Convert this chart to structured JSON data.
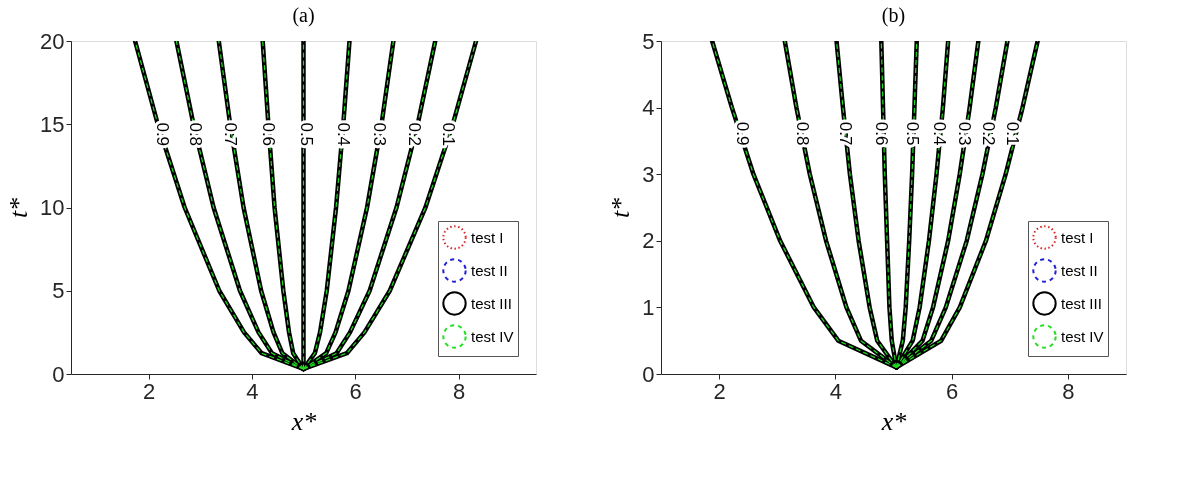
{
  "chart_data": [
    {
      "type": "line",
      "title": "(a)",
      "xlabel": "x*",
      "ylabel": "t*",
      "xlim": [
        0.5,
        9.5
      ],
      "ylim": [
        0,
        20
      ],
      "xticks": [
        2,
        4,
        6,
        8
      ],
      "yticks": [
        0,
        5,
        10,
        15,
        20
      ],
      "grid": false,
      "legend": "bottom right",
      "marker": "none",
      "series": [
        {
          "name": "test I",
          "color": "#d62728",
          "line_style": "dotted"
        },
        {
          "name": "test II",
          "color": "#1f1fd6",
          "line_style": "dashed"
        },
        {
          "name": "test III",
          "color": "#000000",
          "line_style": "solid",
          "x": [
            5,
            4.19,
            3.85,
            3.37,
            2.7,
            2.18,
            1.74,
            null,
            5,
            4.39,
            4.13,
            3.77,
            3.26,
            2.87,
            2.54,
            null,
            5,
            4.59,
            4.42,
            4.18,
            3.84,
            3.58,
            3.36,
            null,
            5,
            4.8,
            4.72,
            4.61,
            4.44,
            4.32,
            4.21,
            null,
            5,
            5,
            5,
            5,
            5,
            5,
            5,
            null,
            5,
            5.22,
            5.32,
            5.45,
            5.63,
            5.77,
            5.89,
            null,
            5,
            5.44,
            5.62,
            5.87,
            6.23,
            6.51,
            6.74,
            null,
            5,
            5.64,
            5.9,
            6.28,
            6.8,
            7.21,
            7.55,
            null,
            5,
            5.84,
            6.18,
            6.67,
            7.36,
            7.89,
            8.34
          ],
          "values": [
            0.3,
            1.25,
            2.5,
            5,
            10,
            15,
            20,
            null,
            0.3,
            1.25,
            2.5,
            5,
            10,
            15,
            20,
            null,
            0.3,
            1.25,
            2.5,
            5,
            10,
            15,
            20,
            null,
            0.3,
            1.25,
            2.5,
            5,
            10,
            15,
            20,
            null,
            0.3,
            1.25,
            2.5,
            5,
            10,
            15,
            20,
            null,
            0.3,
            1.25,
            2.5,
            5,
            10,
            15,
            20,
            null,
            0.3,
            1.25,
            2.5,
            5,
            10,
            15,
            20,
            null,
            0.3,
            1.25,
            2.5,
            5,
            10,
            15,
            20,
            null,
            0.3,
            1.25,
            2.5,
            5,
            10,
            15,
            20
          ]
        },
        {
          "name": "test IV",
          "color": "#22dd22",
          "line_style": "dashed",
          "x": [
            5,
            4.19,
            3.85,
            3.37,
            2.7,
            2.18,
            1.74,
            null,
            5,
            4.39,
            4.13,
            3.77,
            3.26,
            2.87,
            2.54,
            null,
            5,
            4.59,
            4.42,
            4.18,
            3.84,
            3.58,
            3.36,
            null,
            5,
            4.8,
            4.72,
            4.61,
            4.44,
            4.32,
            4.21,
            null,
            5,
            5,
            5,
            5,
            5,
            5,
            5,
            null,
            5,
            5.22,
            5.32,
            5.45,
            5.63,
            5.77,
            5.89,
            null,
            5,
            5.44,
            5.62,
            5.87,
            6.23,
            6.51,
            6.74,
            null,
            5,
            5.64,
            5.9,
            6.28,
            6.8,
            7.21,
            7.55,
            null,
            5,
            5.84,
            6.18,
            6.67,
            7.36,
            7.89,
            8.34
          ],
          "values": [
            0.3,
            1.25,
            2.5,
            5,
            10,
            15,
            20,
            null,
            0.3,
            1.25,
            2.5,
            5,
            10,
            15,
            20,
            null,
            0.3,
            1.25,
            2.5,
            5,
            10,
            15,
            20,
            null,
            0.3,
            1.25,
            2.5,
            5,
            10,
            15,
            20,
            null,
            0.3,
            1.25,
            2.5,
            5,
            10,
            15,
            20,
            null,
            0.3,
            1.25,
            2.5,
            5,
            10,
            15,
            20,
            null,
            0.3,
            1.25,
            2.5,
            5,
            10,
            15,
            20,
            null,
            0.3,
            1.25,
            2.5,
            5,
            10,
            15,
            20,
            null,
            0.3,
            1.25,
            2.5,
            5,
            10,
            15,
            20
          ]
        }
      ],
      "annotations": [
        {
          "text": "0.9",
          "x": 2.26,
          "y": 14.4
        },
        {
          "text": "0.8",
          "x": 2.9,
          "y": 14.4
        },
        {
          "text": "0.7",
          "x": 3.58,
          "y": 14.4
        },
        {
          "text": "0.6",
          "x": 4.31,
          "y": 14.4
        },
        {
          "text": "0.5",
          "x": 5.05,
          "y": 14.4
        },
        {
          "text": "0.4",
          "x": 5.76,
          "y": 14.4
        },
        {
          "text": "0.3",
          "x": 6.46,
          "y": 14.4
        },
        {
          "text": "0.2",
          "x": 7.13,
          "y": 14.4
        },
        {
          "text": "0.1",
          "x": 7.79,
          "y": 14.4
        }
      ]
    },
    {
      "type": "line",
      "title": "(b)",
      "xlabel": "x*",
      "ylabel": "t*",
      "xlim": [
        1,
        9
      ],
      "ylim": [
        0,
        5
      ],
      "xticks": [
        2,
        4,
        6,
        8
      ],
      "yticks": [
        0,
        1,
        2,
        3,
        4,
        5
      ],
      "grid": false,
      "legend": "bottom right",
      "marker": "none",
      "series": [
        {
          "name": "test I",
          "color": "#d62728",
          "line_style": "dotted"
        },
        {
          "name": "test II",
          "color": "#1f1fd6",
          "line_style": "dashed"
        },
        {
          "name": "test III",
          "color": "#000000",
          "line_style": "solid",
          "x": [
            5.05,
            4.05,
            3.63,
            3.05,
            2.59,
            2.22,
            1.88,
            null,
            5.05,
            4.44,
            4.19,
            3.84,
            3.56,
            3.33,
            3.13,
            null,
            5.05,
            4.72,
            4.59,
            4.4,
            4.25,
            4.13,
            4.02,
            null,
            5.05,
            4.97,
            4.93,
            4.89,
            4.85,
            4.82,
            4.79,
            null,
            5.05,
            5.16,
            5.21,
            5.27,
            5.32,
            5.36,
            5.4,
            null,
            5.05,
            5.33,
            5.45,
            5.61,
            5.74,
            5.85,
            5.94,
            null,
            5.05,
            5.5,
            5.68,
            5.94,
            6.14,
            6.31,
            6.46,
            null,
            5.05,
            5.65,
            5.9,
            6.26,
            6.53,
            6.76,
            6.96,
            null,
            5.05,
            5.82,
            6.14,
            6.59,
            6.93,
            7.22,
            7.48
          ],
          "values": [
            0.1,
            0.5,
            1,
            2,
            3,
            4,
            5,
            null,
            0.1,
            0.5,
            1,
            2,
            3,
            4,
            5,
            null,
            0.1,
            0.5,
            1,
            2,
            3,
            4,
            5,
            null,
            0.1,
            0.5,
            1,
            2,
            3,
            4,
            5,
            null,
            0.1,
            0.5,
            1,
            2,
            3,
            4,
            5,
            null,
            0.1,
            0.5,
            1,
            2,
            3,
            4,
            5,
            null,
            0.1,
            0.5,
            1,
            2,
            3,
            4,
            5,
            null,
            0.1,
            0.5,
            1,
            2,
            3,
            4,
            5,
            null,
            0.1,
            0.5,
            1,
            2,
            3,
            4,
            5
          ]
        },
        {
          "name": "test IV",
          "color": "#22dd22",
          "line_style": "dashed",
          "x": [
            5.05,
            4.05,
            3.63,
            3.05,
            2.59,
            2.22,
            1.88,
            null,
            5.05,
            4.44,
            4.19,
            3.84,
            3.56,
            3.33,
            3.13,
            null,
            5.05,
            4.72,
            4.59,
            4.4,
            4.25,
            4.13,
            4.02,
            null,
            5.05,
            4.97,
            4.93,
            4.89,
            4.85,
            4.82,
            4.79,
            null,
            5.05,
            5.16,
            5.21,
            5.27,
            5.32,
            5.36,
            5.4,
            null,
            5.05,
            5.33,
            5.45,
            5.61,
            5.74,
            5.85,
            5.94,
            null,
            5.05,
            5.5,
            5.68,
            5.94,
            6.14,
            6.31,
            6.46,
            null,
            5.05,
            5.65,
            5.9,
            6.26,
            6.53,
            6.76,
            6.96,
            null,
            5.05,
            5.82,
            6.14,
            6.59,
            6.93,
            7.22,
            7.48
          ],
          "values": [
            0.1,
            0.5,
            1,
            2,
            3,
            4,
            5,
            null,
            0.1,
            0.5,
            1,
            2,
            3,
            4,
            5,
            null,
            0.1,
            0.5,
            1,
            2,
            3,
            4,
            5,
            null,
            0.1,
            0.5,
            1,
            2,
            3,
            4,
            5,
            null,
            0.1,
            0.5,
            1,
            2,
            3,
            4,
            5,
            null,
            0.1,
            0.5,
            1,
            2,
            3,
            4,
            5,
            null,
            0.1,
            0.5,
            1,
            2,
            3,
            4,
            5,
            null,
            0.1,
            0.5,
            1,
            2,
            3,
            4,
            5,
            null,
            0.1,
            0.5,
            1,
            2,
            3,
            4,
            5
          ]
        }
      ],
      "annotations": [
        {
          "text": "0.9",
          "x": 2.4,
          "y": 3.61
        },
        {
          "text": "0.8",
          "x": 3.42,
          "y": 3.61
        },
        {
          "text": "0.7",
          "x": 4.16,
          "y": 3.61
        },
        {
          "text": "0.6",
          "x": 4.79,
          "y": 3.61
        },
        {
          "text": "0.5",
          "x": 5.31,
          "y": 3.61
        },
        {
          "text": "0.4",
          "x": 5.79,
          "y": 3.61
        },
        {
          "text": "0.3",
          "x": 6.22,
          "y": 3.61
        },
        {
          "text": "0.2",
          "x": 6.63,
          "y": 3.61
        },
        {
          "text": "0.1",
          "x": 7.04,
          "y": 3.61
        }
      ]
    }
  ]
}
